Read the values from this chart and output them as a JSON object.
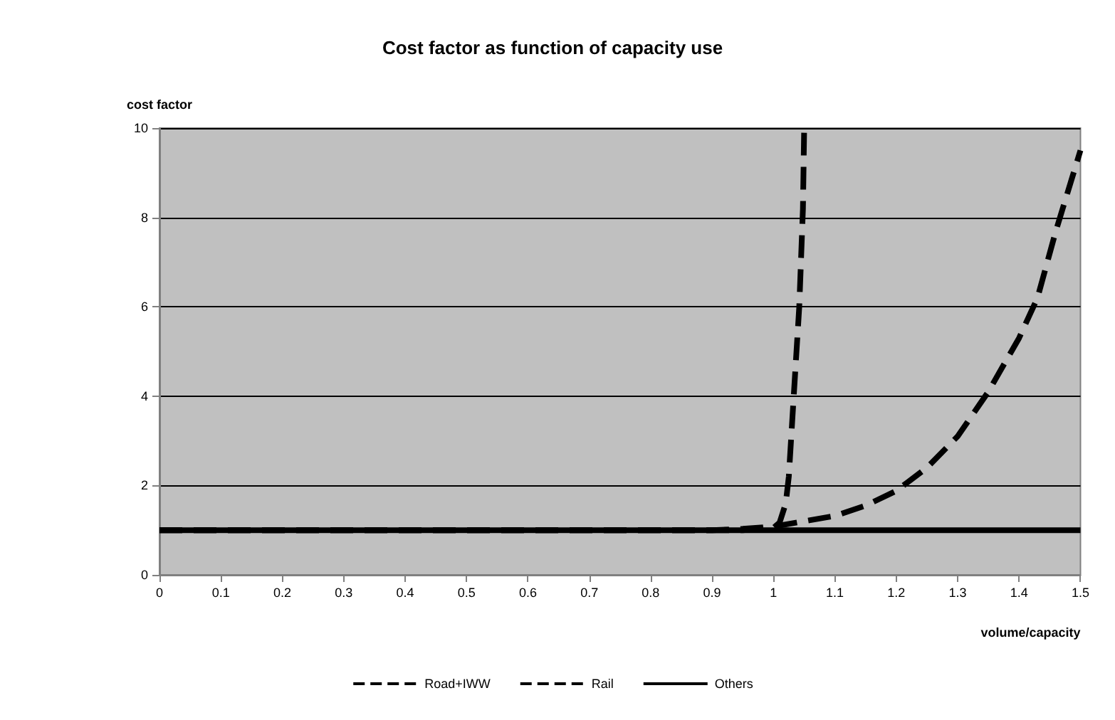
{
  "chart_data": {
    "type": "line",
    "title": "Cost factor as function of capacity use",
    "xlabel": "volume/capacity",
    "ylabel": "cost factor",
    "xlim": [
      0,
      1.5
    ],
    "xticks": [
      0,
      0.1,
      0.2,
      0.3,
      0.4,
      0.5,
      0.6,
      0.7,
      0.8,
      0.9,
      1,
      1.1,
      1.2,
      1.3,
      1.4,
      1.5
    ],
    "ylim": [
      0,
      10
    ],
    "yticks": [
      0,
      2,
      4,
      6,
      8,
      10
    ],
    "grid": "y",
    "legend": "bottom",
    "marker": "none",
    "series": [
      {
        "name": "Road+IWW",
        "color": "#000000",
        "line_style": "dashed",
        "x": [
          0,
          0.9,
          0.95,
          1.0,
          1.05,
          1.1,
          1.15,
          1.2,
          1.25,
          1.3,
          1.35,
          1.4,
          1.43,
          1.46,
          1.5
        ],
        "values": [
          1,
          1,
          1.03,
          1.08,
          1.2,
          1.32,
          1.55,
          1.88,
          2.4,
          3.1,
          4.1,
          5.3,
          6.2,
          7.7,
          9.5
        ]
      },
      {
        "name": "Rail",
        "color": "#000000",
        "line_style": "dashed",
        "x": [
          0,
          0.95,
          1.0,
          1.01,
          1.02,
          1.025,
          1.033,
          1.042,
          1.048,
          1.05
        ],
        "values": [
          1,
          1,
          1.05,
          1.17,
          1.6,
          2.2,
          4,
          6,
          8.2,
          10
        ]
      },
      {
        "name": "Others",
        "color": "#000000",
        "line_style": "solid",
        "x": [
          0,
          1.5
        ],
        "values": [
          1,
          1
        ]
      }
    ]
  }
}
